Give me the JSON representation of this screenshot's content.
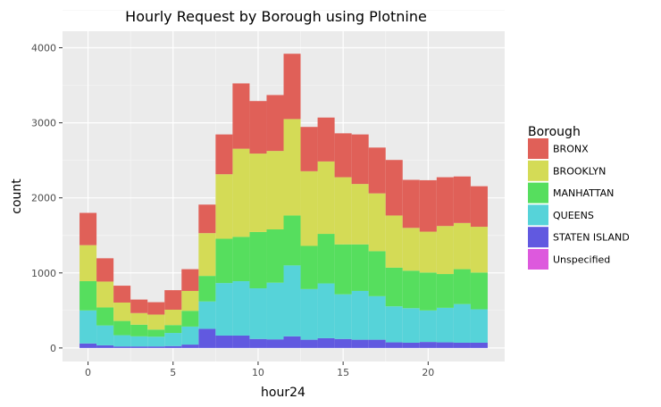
{
  "chart_data": {
    "type": "bar",
    "stacked": true,
    "title": "Hourly Request by Borough using Plotnine",
    "xlabel": "hour24",
    "ylabel": "count",
    "x": [
      0,
      1,
      2,
      3,
      4,
      5,
      6,
      7,
      8,
      9,
      10,
      11,
      12,
      13,
      14,
      15,
      16,
      17,
      18,
      19,
      20,
      21,
      22,
      23
    ],
    "xlim": [
      -1.5,
      24.5
    ],
    "ylim": [
      -180,
      4220
    ],
    "x_ticks": [
      0,
      5,
      10,
      15,
      20
    ],
    "y_ticks": [
      0,
      1000,
      2000,
      3000,
      4000
    ],
    "grid": true,
    "legend": {
      "title": "Borough",
      "position": "right"
    },
    "series": [
      {
        "name": "STATEN ISLAND",
        "color": "#6159e0",
        "values": [
          60,
          35,
          20,
          20,
          20,
          25,
          45,
          255,
          165,
          165,
          120,
          115,
          155,
          110,
          130,
          120,
          110,
          110,
          75,
          70,
          80,
          75,
          70,
          70
        ]
      },
      {
        "name": "QUEENS",
        "color": "#56d3d9",
        "values": [
          440,
          265,
          150,
          135,
          130,
          175,
          240,
          365,
          700,
          725,
          675,
          755,
          945,
          675,
          730,
          595,
          650,
          580,
          480,
          460,
          420,
          460,
          515,
          445
        ]
      },
      {
        "name": "MANHATTAN",
        "color": "#56de5e",
        "values": [
          390,
          240,
          190,
          155,
          95,
          105,
          210,
          340,
          590,
          590,
          750,
          710,
          665,
          575,
          660,
          665,
          620,
          600,
          515,
          500,
          505,
          450,
          465,
          490
        ]
      },
      {
        "name": "BROOKLYN",
        "color": "#d4db56",
        "values": [
          480,
          345,
          245,
          155,
          200,
          205,
          265,
          570,
          860,
          1175,
          1045,
          1045,
          1285,
          995,
          965,
          895,
          805,
          770,
          695,
          570,
          545,
          640,
          615,
          610
        ]
      },
      {
        "name": "BRONX",
        "color": "#e06058",
        "values": [
          430,
          310,
          225,
          180,
          165,
          260,
          290,
          380,
          530,
          870,
          700,
          745,
          870,
          590,
          585,
          585,
          660,
          610,
          740,
          640,
          685,
          650,
          620,
          540
        ]
      },
      {
        "name": "Unspecified",
        "color": "#dd59dd",
        "values": [
          0,
          0,
          0,
          0,
          0,
          0,
          0,
          0,
          0,
          0,
          0,
          0,
          0,
          0,
          0,
          0,
          0,
          0,
          0,
          0,
          0,
          0,
          0,
          0
        ]
      }
    ],
    "legend_order": [
      "BRONX",
      "BROOKLYN",
      "MANHATTAN",
      "QUEENS",
      "STATEN ISLAND",
      "Unspecified"
    ]
  }
}
